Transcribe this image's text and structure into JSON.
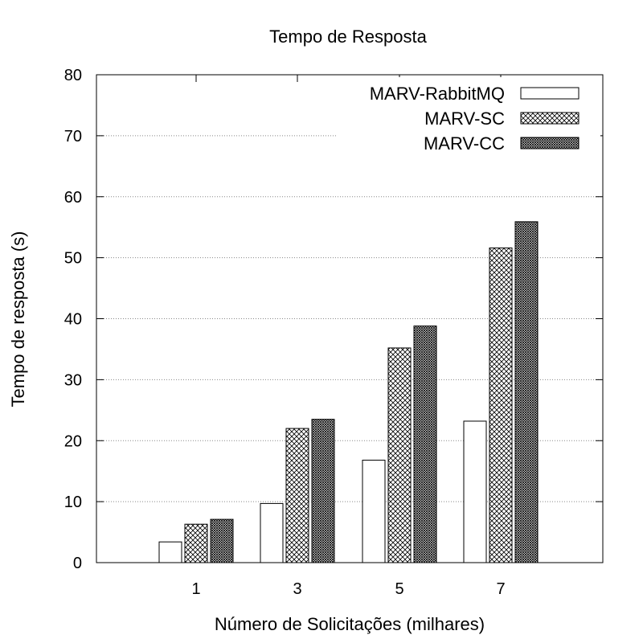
{
  "chart_data": {
    "type": "bar",
    "title": "Tempo de Resposta",
    "xlabel": "Número de Solicitações (milhares)",
    "ylabel": "Tempo de resposta (s)",
    "categories": [
      "1",
      "3",
      "5",
      "7"
    ],
    "ylim": [
      0,
      80
    ],
    "yticks": [
      0,
      10,
      20,
      30,
      40,
      50,
      60,
      70,
      80
    ],
    "grid": true,
    "legend_position": "top-right",
    "series": [
      {
        "name": "MARV-RabbitMQ",
        "values": [
          3.4,
          9.7,
          16.8,
          23.2
        ],
        "pattern": "empty"
      },
      {
        "name": "MARV-SC",
        "values": [
          6.3,
          22.0,
          35.2,
          51.6
        ],
        "pattern": "crosshatch"
      },
      {
        "name": "MARV-CC",
        "values": [
          7.1,
          23.5,
          38.8,
          55.9
        ],
        "pattern": "dense-crosshatch"
      }
    ]
  }
}
